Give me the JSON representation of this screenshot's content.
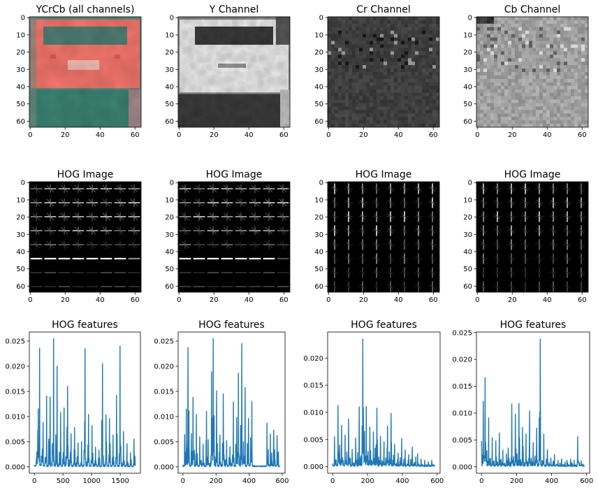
{
  "figure": {
    "background": "#ffffff",
    "axis_color": "#000000"
  },
  "image_panels": [
    {
      "title": "YCrCb (all channels)",
      "type": "image",
      "style": "ycrcb",
      "xticks": [
        "0",
        "20",
        "40",
        "60"
      ],
      "yticks": [
        "0",
        "10",
        "20",
        "30",
        "40",
        "50",
        "60"
      ],
      "xlim": [
        0,
        63
      ],
      "ylim": [
        63,
        0
      ]
    },
    {
      "title": "Y Channel",
      "type": "image",
      "style": "gray_y",
      "xticks": [
        "0",
        "20",
        "40",
        "60"
      ],
      "yticks": [
        "0",
        "10",
        "20",
        "30",
        "40",
        "50",
        "60"
      ],
      "xlim": [
        0,
        63
      ],
      "ylim": [
        63,
        0
      ]
    },
    {
      "title": "Cr Channel",
      "type": "image",
      "style": "gray_cr",
      "xticks": [
        "0",
        "20",
        "40",
        "60"
      ],
      "yticks": [
        "0",
        "10",
        "20",
        "30",
        "40",
        "50",
        "60"
      ],
      "xlim": [
        0,
        63
      ],
      "ylim": [
        63,
        0
      ]
    },
    {
      "title": "Cb Channel",
      "type": "image",
      "style": "gray_cb",
      "xticks": [
        "0",
        "20",
        "40",
        "60"
      ],
      "yticks": [
        "0",
        "10",
        "20",
        "30",
        "40",
        "50",
        "60"
      ],
      "xlim": [
        0,
        63
      ],
      "ylim": [
        63,
        0
      ]
    },
    {
      "title": "HOG Image",
      "type": "image",
      "style": "hog_a",
      "xticks": [
        "0",
        "20",
        "40",
        "60"
      ],
      "yticks": [
        "0",
        "10",
        "20",
        "30",
        "40",
        "50",
        "60"
      ],
      "xlim": [
        0,
        63
      ],
      "ylim": [
        63,
        0
      ]
    },
    {
      "title": "HOG Image",
      "type": "image",
      "style": "hog_a",
      "xticks": [
        "0",
        "20",
        "40",
        "60"
      ],
      "yticks": [
        "0",
        "10",
        "20",
        "30",
        "40",
        "50",
        "60"
      ],
      "xlim": [
        0,
        63
      ],
      "ylim": [
        63,
        0
      ]
    },
    {
      "title": "HOG Image",
      "type": "image",
      "style": "hog_b",
      "xticks": [
        "0",
        "20",
        "40",
        "60"
      ],
      "yticks": [
        "0",
        "10",
        "20",
        "30",
        "40",
        "50",
        "60"
      ],
      "xlim": [
        0,
        63
      ],
      "ylim": [
        63,
        0
      ]
    },
    {
      "title": "HOG Image",
      "type": "image",
      "style": "hog_c",
      "xticks": [
        "0",
        "20",
        "40",
        "60"
      ],
      "yticks": [
        "0",
        "10",
        "20",
        "30",
        "40",
        "50",
        "60"
      ],
      "xlim": [
        0,
        63
      ],
      "ylim": [
        63,
        0
      ]
    }
  ],
  "chart_data": [
    {
      "type": "line",
      "title": "HOG features",
      "xlabel": "",
      "ylabel": "",
      "xlim": [
        -88,
        1852
      ],
      "ylim": [
        -0.00127,
        0.0268
      ],
      "xticks": [
        "0",
        "500",
        "1000",
        "1500"
      ],
      "yticks": [
        "0.000",
        "0.005",
        "0.010",
        "0.015",
        "0.020",
        "0.025"
      ],
      "color": "#1f77b4",
      "grid": false,
      "series": [
        {
          "x_range": [
            0,
            1763
          ],
          "y": [
            0.0004,
            0.0072,
            0.0236,
            0.0021,
            0.0088,
            0.0005,
            0.0141,
            0.0003,
            0.0139,
            0.001,
            0.0255,
            0.0012,
            0.02,
            0.0006,
            0.0108,
            0.0002,
            0.0117,
            0.002,
            0.016,
            0.0014,
            0.0066,
            0.0003,
            0.0078,
            0.0008,
            0.0047,
            0.0002,
            0.005,
            0.0004,
            0.0235,
            0.001,
            0.0104,
            0.0002,
            0.0082,
            0.0006,
            0.0039,
            0.0002,
            0.0033,
            0.0001,
            0.0205,
            0.0004,
            0.0103,
            0.0003,
            0.0096,
            0.0002,
            0.0063,
            0.0001,
            0.0142,
            0.0003,
            0.024,
            0.0008,
            0.007,
            0.0003,
            0.0046,
            0.0002,
            0.0028,
            0.0001,
            0.0055,
            0.0001
          ]
        }
      ]
    },
    {
      "type": "line",
      "title": "HOG features",
      "xlabel": "",
      "ylabel": "",
      "xlim": [
        -29,
        617
      ],
      "ylim": [
        -0.00127,
        0.0268
      ],
      "xticks": [
        "0",
        "200",
        "400",
        "600"
      ],
      "yticks": [
        "0.000",
        "0.005",
        "0.010",
        "0.015",
        "0.020",
        "0.025"
      ],
      "color": "#1f77b4",
      "grid": false,
      "series": [
        {
          "x_range": [
            0,
            587
          ],
          "y": [
            0.0004,
            0.0064,
            0.0115,
            0.0237,
            0.0008,
            0.0066,
            0.0138,
            0.0025,
            0.0104,
            0.0003,
            0.006,
            0.0013,
            0.0045,
            0.0002,
            0.011,
            0.0054,
            0.0007,
            0.0189,
            0.0255,
            0.002,
            0.0151,
            0.0003,
            0.0063,
            0.0005,
            0.0145,
            0.0014,
            0.0052,
            0.0002,
            0.004,
            0.0007,
            0.0129,
            0.0003,
            0.0098,
            0.0186,
            0.0021,
            0.0245,
            0.005,
            0.0158,
            0.0004,
            0.0096,
            0.0006,
            0.013,
            0.0003,
            0.0002,
            0.0002,
            0.0001,
            0.0001,
            0.0001,
            0.0001,
            0.0002,
            0.0002,
            0.0087,
            0.0005,
            0.0065,
            0.0012,
            0.0073,
            0.0002,
            0.0062,
            0.0003,
            0.0001
          ]
        }
      ]
    },
    {
      "type": "line",
      "title": "HOG features",
      "xlabel": "",
      "ylabel": "",
      "xlim": [
        -29,
        617
      ],
      "ylim": [
        -0.0012,
        0.0248
      ],
      "xticks": [
        "0",
        "200",
        "400",
        "600"
      ],
      "yticks": [
        "0.000",
        "0.005",
        "0.010",
        "0.015",
        "0.020"
      ],
      "color": "#1f77b4",
      "grid": false,
      "series": [
        {
          "x_range": [
            0,
            587
          ],
          "y": [
            0.0006,
            0.0055,
            0.0012,
            0.0113,
            0.0031,
            0.0076,
            0.0011,
            0.0058,
            0.0027,
            0.0088,
            0.0015,
            0.0032,
            0.0007,
            0.0053,
            0.0026,
            0.011,
            0.002,
            0.0235,
            0.0065,
            0.0111,
            0.0028,
            0.0073,
            0.0012,
            0.0064,
            0.0034,
            0.0108,
            0.0018,
            0.0056,
            0.0011,
            0.0046,
            0.0016,
            0.0075,
            0.0027,
            0.0098,
            0.0012,
            0.0041,
            0.0006,
            0.0025,
            0.001,
            0.0052,
            0.0007,
            0.0031,
            0.0005,
            0.0022,
            0.0004,
            0.0036,
            0.0006,
            0.0018,
            0.0004,
            0.0024,
            0.0003,
            0.0014,
            0.0003,
            0.0012,
            0.0004,
            0.0009,
            0.0003,
            0.0012,
            0.0004,
            0.0013
          ]
        }
      ]
    },
    {
      "type": "line",
      "title": "HOG features",
      "xlabel": "",
      "ylabel": "",
      "xlim": [
        -29,
        617
      ],
      "ylim": [
        -0.0012,
        0.0251
      ],
      "xticks": [
        "0",
        "200",
        "400",
        "600"
      ],
      "yticks": [
        "0.000",
        "0.005",
        "0.010",
        "0.015",
        "0.020",
        "0.025"
      ],
      "color": "#1f77b4",
      "grid": false,
      "series": [
        {
          "x_range": [
            0,
            587
          ],
          "y": [
            0.0048,
            0.0122,
            0.0166,
            0.003,
            0.0091,
            0.0016,
            0.0054,
            0.0011,
            0.0048,
            0.0009,
            0.0063,
            0.0014,
            0.0031,
            0.0007,
            0.0024,
            0.0035,
            0.0009,
            0.0117,
            0.0019,
            0.0098,
            0.0024,
            0.0118,
            0.0013,
            0.0073,
            0.0008,
            0.0061,
            0.0009,
            0.0104,
            0.0016,
            0.0045,
            0.002,
            0.0072,
            0.0006,
            0.0238,
            0.0012,
            0.0061,
            0.0004,
            0.0032,
            0.0008,
            0.0016,
            0.0005,
            0.0023,
            0.0004,
            0.0012,
            0.0005,
            0.0015,
            0.0004,
            0.0009,
            0.0003,
            0.0012,
            0.0004,
            0.0014,
            0.0005,
            0.0012,
            0.0004,
            0.0056,
            0.0007,
            0.0011,
            0.0005,
            0.0008
          ]
        }
      ]
    }
  ]
}
